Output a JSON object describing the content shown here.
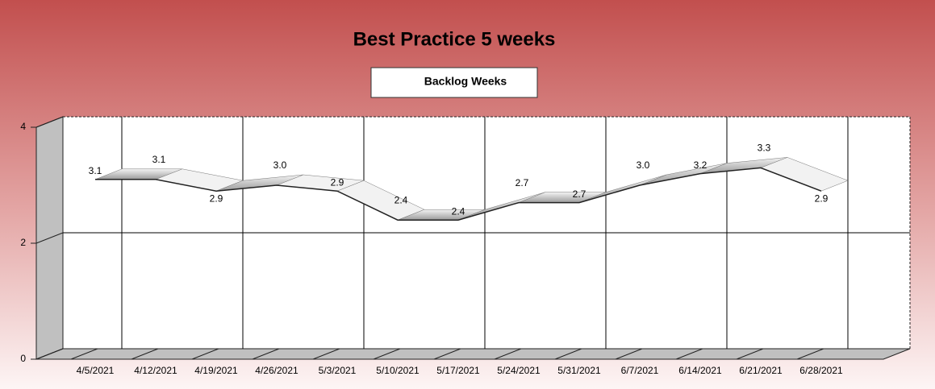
{
  "chart_data": {
    "type": "line",
    "title": "Best Practice 5 weeks",
    "categories": [
      "4/5/2021",
      "4/12/2021",
      "4/19/2021",
      "4/26/2021",
      "5/3/2021",
      "5/10/2021",
      "5/17/2021",
      "5/24/2021",
      "5/31/2021",
      "6/7/2021",
      "6/14/2021",
      "6/21/2021",
      "6/28/2021"
    ],
    "series": [
      {
        "name": "Backlog Weeks",
        "color": "#c8c8c8",
        "values": [
          3.1,
          3.1,
          2.9,
          3.0,
          2.9,
          2.4,
          2.4,
          2.7,
          2.7,
          3.0,
          3.2,
          3.3,
          2.9
        ],
        "value_labels": [
          "3.1",
          "3.1",
          "2.9",
          "3.0",
          "2.9",
          "2.4",
          "2.4",
          "2.7",
          "2.7",
          "3.0",
          "3.2",
          "3.3",
          "2.9"
        ]
      }
    ],
    "ylim": [
      0,
      4
    ],
    "yticks": [
      0,
      2,
      4
    ],
    "grid": true,
    "legend": "top"
  }
}
